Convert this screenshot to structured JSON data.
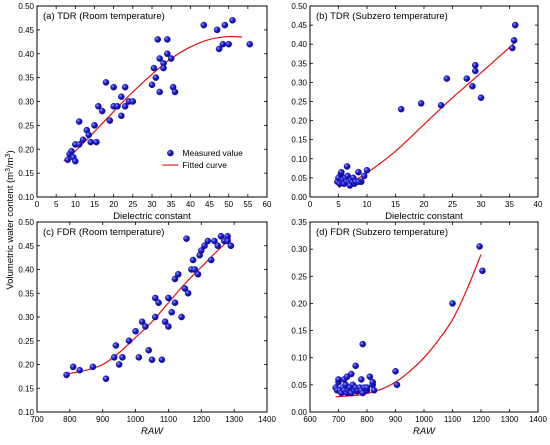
{
  "ylabel": {
    "main": "Volumetric water content (m",
    "sup1": "3",
    "mid": "/m",
    "sup2": "3",
    "end": ")"
  },
  "legend": {
    "measured": "Measured value",
    "fitted": "Fitted curve"
  },
  "colors": {
    "point": "#1f1fd6",
    "curve": "#e01010",
    "axis": "#000000"
  },
  "chart_data": [
    {
      "id": "a",
      "type": "scatter",
      "title": "(a) TDR (Room temperature)",
      "xlabel": "Dielectric constant",
      "xlim": [
        0,
        60
      ],
      "ylim": [
        0.1,
        0.5
      ],
      "xticks": [
        "0",
        "5",
        "10",
        "15",
        "20",
        "25",
        "30",
        "35",
        "40",
        "45",
        "50",
        "55",
        "60"
      ],
      "yticks": [
        "0.10",
        "0.15",
        "0.20",
        "0.25",
        "0.30",
        "0.35",
        "0.40",
        "0.45",
        "0.50"
      ],
      "series": [
        {
          "kind": "points",
          "x": [
            8,
            8.5,
            9,
            9.5,
            10,
            10,
            11,
            11,
            12,
            13,
            13.5,
            14,
            15,
            15.5,
            16,
            17,
            18,
            19,
            20,
            20,
            21,
            22,
            22,
            23,
            23,
            24,
            25,
            30,
            30.5,
            31,
            31.5,
            32,
            32,
            33,
            33,
            34,
            34,
            35,
            35.5,
            36,
            43.5,
            47,
            47.5,
            48.5,
            49,
            50,
            51,
            55.5
          ],
          "y": [
            0.178,
            0.19,
            0.196,
            0.183,
            0.21,
            0.175,
            0.21,
            0.258,
            0.22,
            0.24,
            0.23,
            0.215,
            0.25,
            0.215,
            0.29,
            0.28,
            0.34,
            0.26,
            0.33,
            0.29,
            0.29,
            0.31,
            0.27,
            0.29,
            0.33,
            0.3,
            0.3,
            0.335,
            0.37,
            0.35,
            0.43,
            0.32,
            0.39,
            0.38,
            0.37,
            0.4,
            0.43,
            0.39,
            0.33,
            0.32,
            0.46,
            0.45,
            0.41,
            0.42,
            0.46,
            0.42,
            0.47,
            0.42
          ]
        },
        {
          "kind": "curve",
          "x": [
            7,
            10,
            15,
            20,
            25,
            30,
            35,
            40,
            45,
            50,
            53.5
          ],
          "y": [
            0.176,
            0.196,
            0.237,
            0.279,
            0.32,
            0.357,
            0.39,
            0.414,
            0.43,
            0.436,
            0.435
          ]
        }
      ]
    },
    {
      "id": "b",
      "type": "scatter",
      "title": "(b) TDR (Subzero temperature)",
      "xlabel": "Dielectric constant",
      "xlim": [
        0,
        40
      ],
      "ylim": [
        0.0,
        0.5
      ],
      "xticks": [
        "0",
        "5",
        "10",
        "15",
        "20",
        "25",
        "30",
        "35",
        "40"
      ],
      "yticks": [
        "0.00",
        "0.05",
        "0.10",
        "0.15",
        "0.20",
        "0.25",
        "0.30",
        "0.35",
        "0.40",
        "0.45",
        "0.50"
      ],
      "series": [
        {
          "kind": "points",
          "x": [
            4.8,
            5,
            5.2,
            5.4,
            5.6,
            5.8,
            6,
            6.2,
            6.4,
            6.6,
            6.8,
            7,
            7.2,
            7.4,
            7.6,
            7.8,
            8,
            8.5,
            9,
            9.5,
            10,
            5.5,
            6.5,
            7,
            8.5,
            16,
            19.5,
            23,
            24,
            27.5,
            28.5,
            29,
            29,
            30,
            35.5,
            35.8,
            36
          ],
          "y": [
            0.04,
            0.05,
            0.035,
            0.06,
            0.04,
            0.045,
            0.035,
            0.05,
            0.04,
            0.055,
            0.04,
            0.035,
            0.045,
            0.04,
            0.05,
            0.035,
            0.04,
            0.065,
            0.04,
            0.055,
            0.07,
            0.065,
            0.08,
            0.03,
            0.04,
            0.23,
            0.245,
            0.24,
            0.31,
            0.31,
            0.29,
            0.33,
            0.345,
            0.26,
            0.39,
            0.41,
            0.45
          ]
        },
        {
          "kind": "curve",
          "x": [
            5,
            7,
            10,
            15,
            20,
            25,
            30,
            36
          ],
          "y": [
            0.025,
            0.038,
            0.063,
            0.12,
            0.19,
            0.26,
            0.325,
            0.405
          ]
        }
      ]
    },
    {
      "id": "c",
      "type": "scatter",
      "title": "(c) FDR (Room temperature)",
      "xlabel": "RAW",
      "xlim": [
        700,
        1400
      ],
      "ylim": [
        0.1,
        0.5
      ],
      "xticks": [
        "700",
        "800",
        "900",
        "1000",
        "1100",
        "1200",
        "1300",
        "1400"
      ],
      "yticks": [
        "0.10",
        "0.15",
        "0.20",
        "0.25",
        "0.30",
        "0.35",
        "0.40",
        "0.45",
        "0.50"
      ],
      "series": [
        {
          "kind": "points",
          "x": [
            790,
            810,
            830,
            870,
            910,
            935,
            940,
            950,
            960,
            980,
            1000,
            1010,
            1020,
            1030,
            1040,
            1050,
            1060,
            1060,
            1070,
            1080,
            1090,
            1100,
            1100,
            1110,
            1120,
            1120,
            1130,
            1140,
            1150,
            1155,
            1160,
            1170,
            1175,
            1180,
            1190,
            1195,
            1200,
            1210,
            1220,
            1230,
            1240,
            1250,
            1260,
            1270,
            1280,
            1280,
            1290
          ],
          "y": [
            0.178,
            0.195,
            0.188,
            0.195,
            0.17,
            0.215,
            0.24,
            0.2,
            0.215,
            0.25,
            0.27,
            0.215,
            0.29,
            0.28,
            0.23,
            0.21,
            0.3,
            0.34,
            0.33,
            0.21,
            0.29,
            0.28,
            0.34,
            0.31,
            0.33,
            0.38,
            0.39,
            0.3,
            0.36,
            0.465,
            0.35,
            0.4,
            0.42,
            0.4,
            0.39,
            0.43,
            0.44,
            0.45,
            0.46,
            0.42,
            0.46,
            0.45,
            0.47,
            0.46,
            0.47,
            0.46,
            0.45
          ]
        },
        {
          "kind": "curve",
          "x": [
            790,
            850,
            900,
            950,
            1000,
            1050,
            1100,
            1150,
            1200,
            1250,
            1290
          ],
          "y": [
            0.18,
            0.188,
            0.2,
            0.225,
            0.257,
            0.29,
            0.33,
            0.37,
            0.405,
            0.44,
            0.465
          ]
        }
      ]
    },
    {
      "id": "d",
      "type": "scatter",
      "title": "(d) FDR (Subzero temperature)",
      "xlabel": "RAW",
      "xlim": [
        600,
        1400
      ],
      "ylim": [
        0.0,
        0.35
      ],
      "xticks": [
        "600",
        "700",
        "800",
        "900",
        "1000",
        "1100",
        "1200",
        "1300",
        "1400"
      ],
      "yticks": [
        "0.00",
        "0.05",
        "0.10",
        "0.15",
        "0.20",
        "0.25",
        "0.30",
        "0.35"
      ],
      "series": [
        {
          "kind": "points",
          "x": [
            690,
            695,
            700,
            705,
            710,
            715,
            720,
            725,
            730,
            735,
            740,
            745,
            750,
            755,
            760,
            765,
            770,
            775,
            780,
            785,
            790,
            800,
            810,
            820,
            700,
            720,
            730,
            745,
            760,
            780,
            785,
            800,
            820,
            825,
            900,
            905,
            1100,
            1195,
            1205
          ],
          "y": [
            0.045,
            0.04,
            0.055,
            0.04,
            0.035,
            0.045,
            0.04,
            0.05,
            0.035,
            0.04,
            0.045,
            0.035,
            0.05,
            0.04,
            0.045,
            0.038,
            0.04,
            0.045,
            0.04,
            0.035,
            0.045,
            0.04,
            0.065,
            0.05,
            0.06,
            0.06,
            0.065,
            0.07,
            0.085,
            0.06,
            0.125,
            0.045,
            0.055,
            0.04,
            0.075,
            0.05,
            0.2,
            0.305,
            0.26
          ]
        },
        {
          "kind": "curve",
          "x": [
            690,
            750,
            800,
            850,
            900,
            950,
            1000,
            1050,
            1100,
            1150,
            1200
          ],
          "y": [
            0.028,
            0.03,
            0.034,
            0.042,
            0.055,
            0.075,
            0.1,
            0.132,
            0.17,
            0.225,
            0.29
          ]
        }
      ]
    }
  ]
}
